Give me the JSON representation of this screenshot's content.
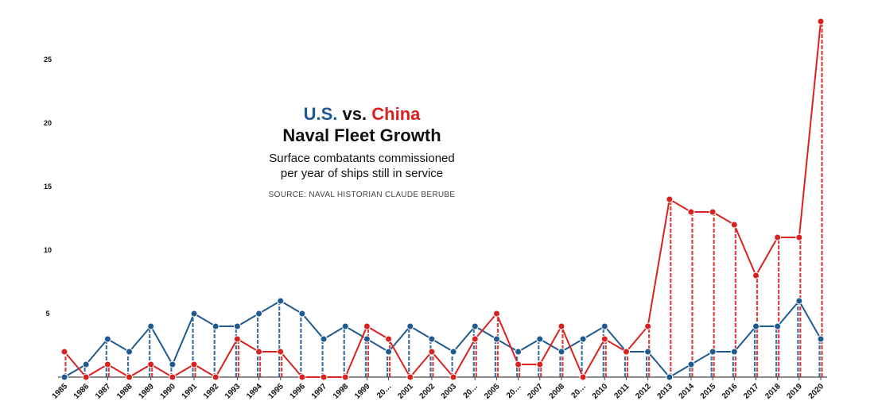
{
  "title": {
    "us": "U.S.",
    "vs": "vs.",
    "china": "China",
    "line2": "Naval Fleet Growth"
  },
  "subtitle": {
    "line1": "Surface combatants commissioned",
    "line2": "per year of ships still in service"
  },
  "source": "SOURCE: NAVAL HISTORIAN CLAUDE BERUBE",
  "colors": {
    "us": "#1f5a8f",
    "china": "#d9211f"
  },
  "chart_data": {
    "type": "line",
    "x": [
      "1985",
      "1986",
      "1987",
      "1988",
      "1989",
      "1990",
      "1991",
      "1992",
      "1993",
      "1994",
      "1995",
      "1996",
      "1997",
      "1998",
      "1999",
      "2000",
      "2001",
      "2002",
      "2003",
      "2004",
      "2005",
      "2006",
      "2007",
      "2008",
      "2009",
      "2010",
      "2011",
      "2012",
      "2013",
      "2014",
      "2015",
      "2016",
      "2017",
      "2018",
      "2019",
      "2020"
    ],
    "x_tick_labels": [
      "1985",
      "1986",
      "1987",
      "1988",
      "1989",
      "1990",
      "1991",
      "1992",
      "1993",
      "1994",
      "1995",
      "1996",
      "1997",
      "1998",
      "1999",
      "20…",
      "2001",
      "2002",
      "2003",
      "20…",
      "2005",
      "20…",
      "2007",
      "2008",
      "20…",
      "2010",
      "2011",
      "2012",
      "2013",
      "2014",
      "2015",
      "2016",
      "2017",
      "2018",
      "2019",
      "2020"
    ],
    "series": [
      {
        "name": "U.S.",
        "color": "#1f5a8f",
        "values": [
          0,
          1,
          3,
          2,
          4,
          1,
          5,
          4,
          4,
          5,
          6,
          5,
          3,
          4,
          3,
          2,
          4,
          3,
          2,
          4,
          3,
          2,
          3,
          2,
          3,
          4,
          2,
          2,
          0,
          1,
          2,
          2,
          4,
          4,
          6,
          3
        ]
      },
      {
        "name": "China",
        "color": "#d9211f",
        "values": [
          2,
          0,
          1,
          0,
          1,
          0,
          1,
          0,
          3,
          2,
          2,
          0,
          0,
          0,
          4,
          3,
          0,
          2,
          0,
          3,
          5,
          1,
          1,
          4,
          0,
          3,
          2,
          4,
          14,
          13,
          13,
          12,
          8,
          11,
          11,
          28
        ]
      }
    ],
    "y_ticks": [
      5,
      10,
      15,
      20,
      25
    ],
    "ylim": [
      0,
      26.5
    ],
    "grid": false,
    "legend": "none"
  }
}
